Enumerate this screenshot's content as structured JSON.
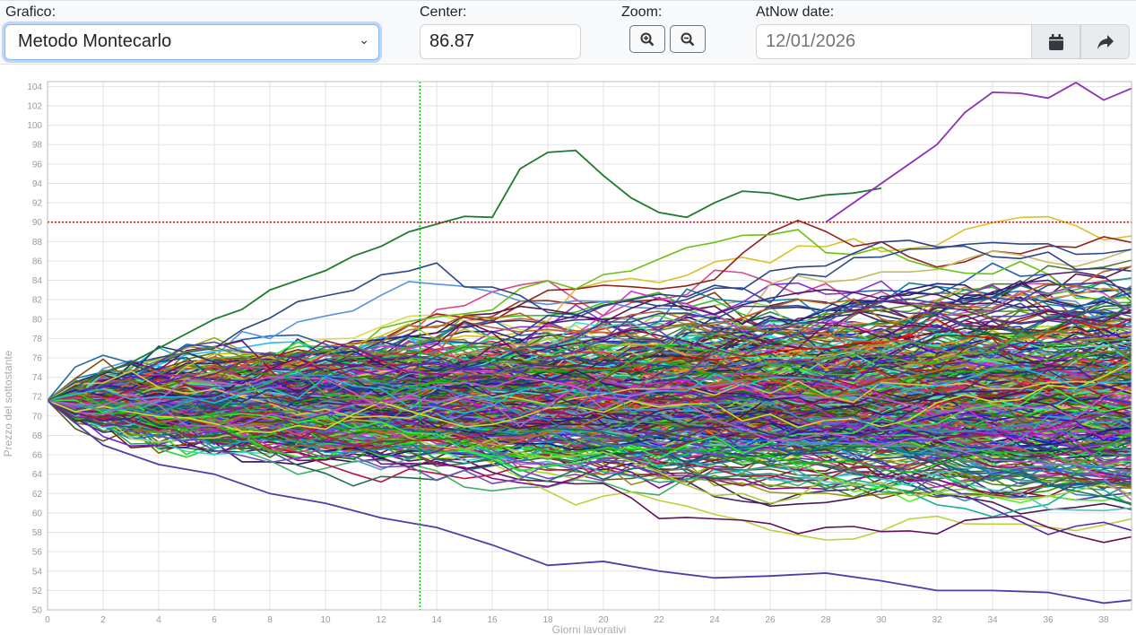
{
  "toolbar": {
    "chart_label": "Grafico:",
    "chart_select_value": "Metodo Montecarlo",
    "center_label": "Center:",
    "center_value": "86.87",
    "zoom_label": "Zoom:",
    "zoom_in_icon": "magnifier-plus-icon",
    "zoom_out_icon": "magnifier-minus-icon",
    "atnow_label": "AtNow date:",
    "atnow_placeholder": "12/01/2026",
    "calendar_icon": "calendar-icon",
    "share_icon": "share-arrow-icon"
  },
  "chart_data": {
    "type": "line",
    "xlabel": "Giorni lavorativi",
    "ylabel": "Prezzo del sottostante",
    "xlim": [
      0,
      39
    ],
    "ylim": [
      50,
      104.5
    ],
    "xticks": [
      0,
      2,
      4,
      6,
      8,
      10,
      12,
      14,
      16,
      18,
      20,
      22,
      24,
      26,
      28,
      30,
      32,
      34,
      36,
      38
    ],
    "yticks": [
      50,
      52,
      54,
      56,
      58,
      60,
      62,
      64,
      66,
      68,
      70,
      72,
      74,
      76,
      78,
      80,
      82,
      84,
      86,
      88,
      90,
      92,
      94,
      96,
      98,
      100,
      102,
      104
    ],
    "grid": true,
    "start_value": 71.6,
    "reference_lines": [
      {
        "orientation": "horizontal",
        "value": 90,
        "color": "#ff0000",
        "style": "dotted"
      },
      {
        "orientation": "vertical",
        "value": 13.4,
        "color": "#00cc00",
        "style": "dotted"
      }
    ],
    "highlighted_series": [
      {
        "color": "#1e7a2e",
        "x": [
          0,
          1,
          2,
          3,
          4,
          5,
          6,
          7,
          8,
          9,
          10,
          11,
          12,
          13,
          14,
          15,
          16,
          17,
          18,
          19,
          20,
          21,
          22,
          23,
          24,
          25,
          26,
          27,
          28,
          29,
          30
        ],
        "y": [
          71.6,
          73,
          74.5,
          75.5,
          77,
          78.5,
          80,
          81,
          83,
          84,
          85,
          86.5,
          87.5,
          89,
          89.8,
          90.6,
          90.5,
          95.5,
          97.2,
          97.4,
          94.8,
          92.5,
          91,
          90.5,
          92,
          93.2,
          93,
          92.3,
          92.8,
          93,
          93.5
        ]
      },
      {
        "color": "#8e2fb8",
        "x": [
          28,
          29,
          30,
          31,
          32,
          33,
          34,
          35,
          36,
          37,
          38,
          39
        ],
        "y": [
          90,
          92,
          94,
          96,
          98,
          101.3,
          103.4,
          103.3,
          102.8,
          104.4,
          102.6,
          103.8
        ]
      },
      {
        "color": "#4a3fa8",
        "x": [
          0,
          2,
          4,
          6,
          8,
          10,
          12,
          14,
          16,
          18,
          20,
          22,
          24,
          26,
          28,
          30,
          32,
          34,
          36,
          38,
          39
        ],
        "y": [
          71.6,
          67,
          65,
          64,
          62,
          61,
          59.5,
          58.5,
          56.7,
          54.6,
          55,
          54,
          53.3,
          53.5,
          53.8,
          53,
          52,
          52,
          51.8,
          50.7,
          51
        ]
      }
    ],
    "simulated_paths": "many"
  }
}
